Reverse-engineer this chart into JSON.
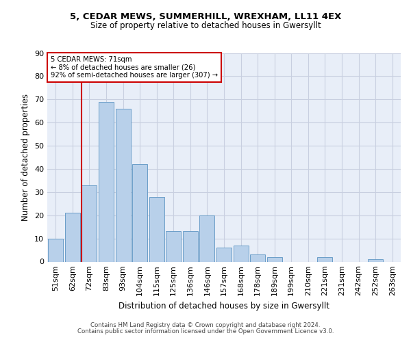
{
  "title_line1": "5, CEDAR MEWS, SUMMERHILL, WREXHAM, LL11 4EX",
  "title_line2": "Size of property relative to detached houses in Gwersyllt",
  "xlabel": "Distribution of detached houses by size in Gwersyllt",
  "ylabel": "Number of detached properties",
  "categories": [
    "51sqm",
    "62sqm",
    "72sqm",
    "83sqm",
    "93sqm",
    "104sqm",
    "115sqm",
    "125sqm",
    "136sqm",
    "146sqm",
    "157sqm",
    "168sqm",
    "178sqm",
    "189sqm",
    "199sqm",
    "210sqm",
    "221sqm",
    "231sqm",
    "242sqm",
    "252sqm",
    "263sqm"
  ],
  "values": [
    10,
    21,
    33,
    69,
    66,
    42,
    28,
    13,
    13,
    20,
    6,
    7,
    3,
    2,
    0,
    0,
    2,
    0,
    0,
    1,
    0
  ],
  "bar_color": "#b8d0ea",
  "bar_edge_color": "#6a9dc8",
  "annotation_text_line1": "5 CEDAR MEWS: 71sqm",
  "annotation_text_line2": "← 8% of detached houses are smaller (26)",
  "annotation_text_line3": "92% of semi-detached houses are larger (307) →",
  "vline_color": "#cc0000",
  "vline_x_index": 1.55,
  "box_color": "#cc0000",
  "ylim": [
    0,
    90
  ],
  "yticks": [
    0,
    10,
    20,
    30,
    40,
    50,
    60,
    70,
    80,
    90
  ],
  "grid_color": "#c8cfe0",
  "background_color": "#e8eef8",
  "footer_line1": "Contains HM Land Registry data © Crown copyright and database right 2024.",
  "footer_line2": "Contains public sector information licensed under the Open Government Licence v3.0."
}
